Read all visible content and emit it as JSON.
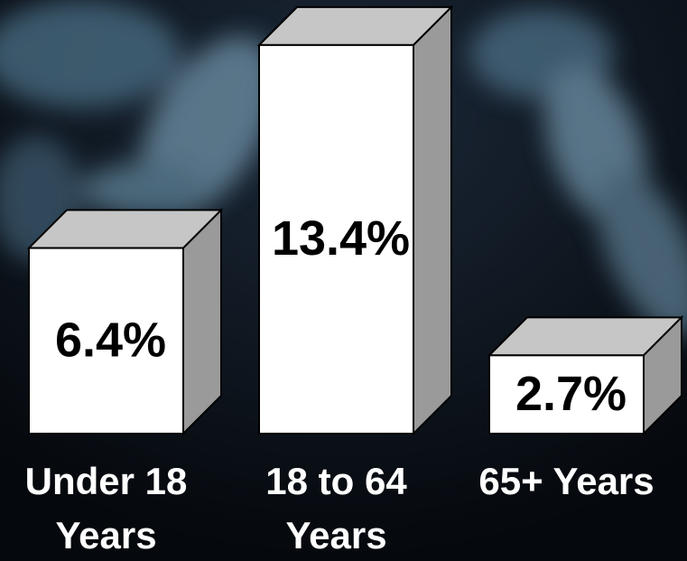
{
  "chart_data": {
    "type": "bar3d",
    "categories": [
      "Under 18 Years",
      "18 to 64 Years",
      "65+ Years"
    ],
    "values": [
      6.4,
      13.4,
      2.7
    ],
    "value_labels": [
      "6.4%",
      "13.4%",
      "2.7%"
    ],
    "color": "#ffffff"
  }
}
